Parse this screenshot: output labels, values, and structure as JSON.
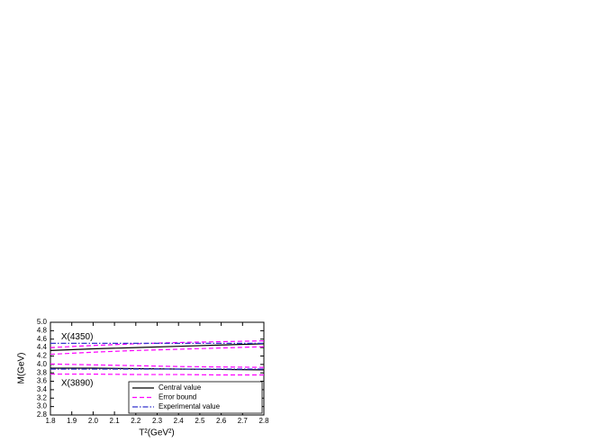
{
  "chart_data": {
    "type": "line",
    "x_label": "T²(GeV²)",
    "y_label": "M(GeV)",
    "annotations": [
      {
        "text": "X(4350)",
        "x": 1.85,
        "y": 4.65
      },
      {
        "text": "X(3890)",
        "x": 1.85,
        "y": 3.55
      }
    ],
    "x": [
      1.8,
      2.0,
      2.2,
      2.4,
      2.6,
      2.8
    ],
    "series": [
      {
        "name": "Central value",
        "color": "#000000",
        "dash": "solid",
        "lines": [
          [
            4.33,
            4.37,
            4.4,
            4.43,
            4.46,
            4.49
          ],
          [
            3.91,
            3.91,
            3.9,
            3.89,
            3.88,
            3.87
          ]
        ]
      },
      {
        "name": "Error bound",
        "color": "#ff00ff",
        "dash": "dashed",
        "lines": [
          [
            4.4,
            4.45,
            4.49,
            4.52,
            4.54,
            4.56
          ],
          [
            4.24,
            4.29,
            4.33,
            4.36,
            4.39,
            4.42
          ],
          [
            4.01,
            3.99,
            3.97,
            3.95,
            3.94,
            3.93
          ],
          [
            3.77,
            3.77,
            3.76,
            3.76,
            3.75,
            3.75
          ]
        ]
      },
      {
        "name": "Experimental value",
        "color": "#3333cc",
        "dash": "dashdot",
        "lines": [
          [
            4.5,
            4.5,
            4.5,
            4.5,
            4.5,
            4.5
          ],
          [
            3.89,
            3.89,
            3.89,
            3.89,
            3.89,
            3.89
          ]
        ]
      }
    ],
    "xlim": [
      1.8,
      2.8
    ],
    "xticks": [
      1.8,
      1.9,
      {
        "value": 2.0,
        "label": "2.0"
      },
      2.1,
      2.2,
      2.3,
      2.4,
      2.5,
      2.6,
      2.7,
      2.8
    ],
    "ylim": [
      2.8,
      5.0
    ],
    "yticks": [
      2.8,
      {
        "value": 3.0,
        "label": "3.0"
      },
      3.2,
      3.4,
      3.6,
      3.8,
      {
        "value": 4.0,
        "label": "4.0"
      },
      4.2,
      4.4,
      4.6,
      4.8,
      {
        "value": 5.0,
        "label": "5.0"
      }
    ],
    "legend": "lower right",
    "grid": false
  }
}
